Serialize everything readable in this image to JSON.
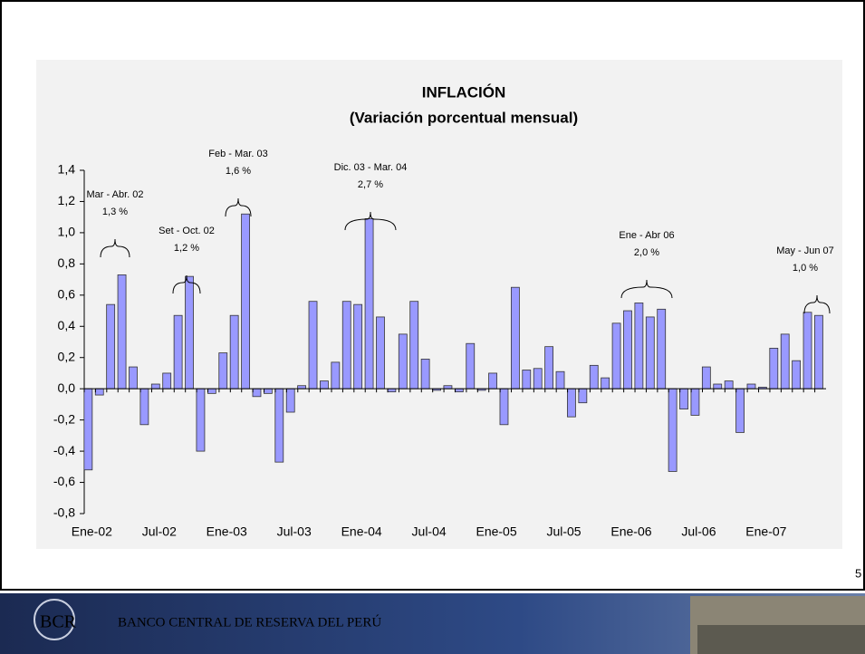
{
  "chart_data": {
    "type": "bar",
    "title": "INFLACIÓN",
    "subtitle": "(Variación porcentual mensual)",
    "categories": [
      "Ene-02",
      null,
      null,
      null,
      null,
      null,
      "Jul-02",
      null,
      null,
      null,
      null,
      null,
      "Ene-03",
      null,
      null,
      null,
      null,
      null,
      "Jul-03",
      null,
      null,
      null,
      null,
      null,
      "Ene-04",
      null,
      null,
      null,
      null,
      null,
      "Jul-04",
      null,
      null,
      null,
      null,
      null,
      "Ene-05",
      null,
      null,
      null,
      null,
      null,
      "Jul-05",
      null,
      null,
      null,
      null,
      null,
      "Ene-06",
      null,
      null,
      null,
      null,
      null,
      "Jul-06",
      null,
      null,
      null,
      null,
      null,
      "Ene-07",
      null,
      null,
      null,
      null,
      null
    ],
    "values": [
      -0.52,
      -0.04,
      0.54,
      0.73,
      0.14,
      -0.23,
      0.03,
      0.1,
      0.47,
      0.72,
      -0.4,
      -0.03,
      0.23,
      0.47,
      1.12,
      -0.05,
      -0.03,
      -0.47,
      -0.15,
      0.02,
      0.56,
      0.05,
      0.17,
      0.56,
      0.54,
      1.09,
      0.46,
      -0.02,
      0.35,
      0.56,
      0.19,
      -0.01,
      0.02,
      -0.02,
      0.29,
      -0.01,
      0.1,
      -0.23,
      0.65,
      0.12,
      0.13,
      0.27,
      0.11,
      -0.18,
      -0.09,
      0.15,
      0.07,
      0.42,
      0.5,
      0.55,
      0.46,
      0.51,
      -0.53,
      -0.13,
      -0.17,
      0.14,
      0.03,
      0.05,
      -0.28,
      0.03,
      0.01,
      0.26,
      0.35,
      0.18,
      0.49,
      0.47
    ],
    "color": "#9999ff",
    "ylim": [
      -0.8,
      1.4
    ],
    "yticks": [
      {
        "value": -0.8,
        "label": "-0,8"
      },
      {
        "value": -0.6,
        "label": "-0,6"
      },
      {
        "value": -0.4,
        "label": "-0,4"
      },
      {
        "value": -0.2,
        "label": "-0,2"
      },
      {
        "value": 0,
        "label": "0,0"
      },
      {
        "value": 0.2,
        "label": "0,2"
      },
      {
        "value": 0.4,
        "label": "0,4"
      },
      {
        "value": 0.6,
        "label": "0,6"
      },
      {
        "value": 0.8,
        "label": "0,8"
      },
      {
        "value": 1.0,
        "label": "1,0"
      },
      {
        "value": 1.2,
        "label": "1,2"
      },
      {
        "value": 1.4,
        "label": "1,4"
      }
    ],
    "annotations": [
      {
        "period": "Mar - Abr. 02",
        "rate": "1,3 %"
      },
      {
        "period": "Set - Oct. 02",
        "rate": "1,2 %"
      },
      {
        "period": "Feb - Mar. 03",
        "rate": "1,6 %"
      },
      {
        "period": "Dic. 03 - Mar. 04",
        "rate": "2,7 %"
      },
      {
        "period": "Ene - Abr 06",
        "rate": "2,0 %"
      },
      {
        "period": "May - Jun 07",
        "rate": "1,0 %"
      }
    ]
  },
  "page_number": "5",
  "footer": "BANCO CENTRAL DE RESERVA DEL PERÚ"
}
